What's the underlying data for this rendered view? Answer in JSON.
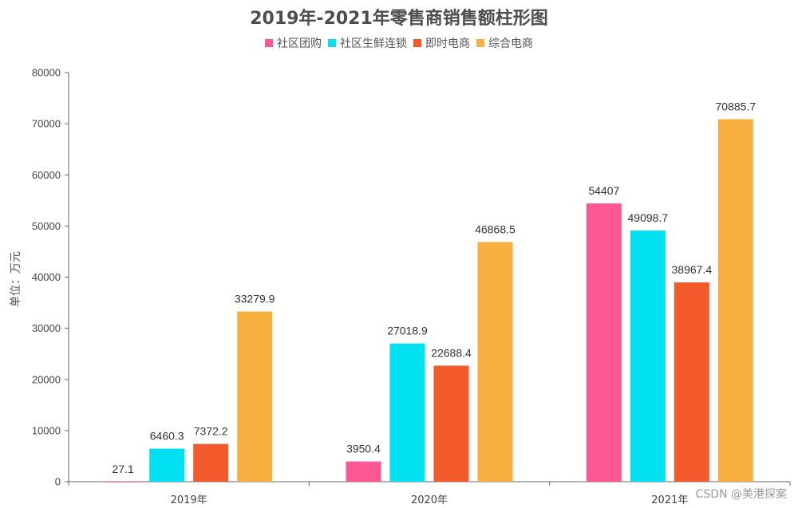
{
  "chart_data": {
    "type": "bar",
    "title": "2019年-2021年零售商销售额柱形图",
    "ylabel": "单位：万元",
    "xlabel": "",
    "categories": [
      "2019年",
      "2020年",
      "2021年"
    ],
    "series": [
      {
        "name": "社区团购",
        "color": "#ff5794",
        "values": [
          27.1,
          3950.4,
          54407
        ]
      },
      {
        "name": "社区生鲜连锁",
        "color": "#00e0f0",
        "values": [
          6460.3,
          27018.9,
          49098.7
        ]
      },
      {
        "name": "即时电商",
        "color": "#f25a2c",
        "values": [
          7372.2,
          22688.4,
          38967.4
        ]
      },
      {
        "name": "综合电商",
        "color": "#f7b040",
        "values": [
          33279.9,
          46868.5,
          70885.7
        ]
      }
    ],
    "ylim": [
      0,
      80000
    ],
    "yticks": [
      0,
      10000,
      20000,
      30000,
      40000,
      50000,
      60000,
      70000,
      80000
    ],
    "legend_position": "top-center",
    "grid": false
  },
  "watermark": "CSDN @美港探案"
}
